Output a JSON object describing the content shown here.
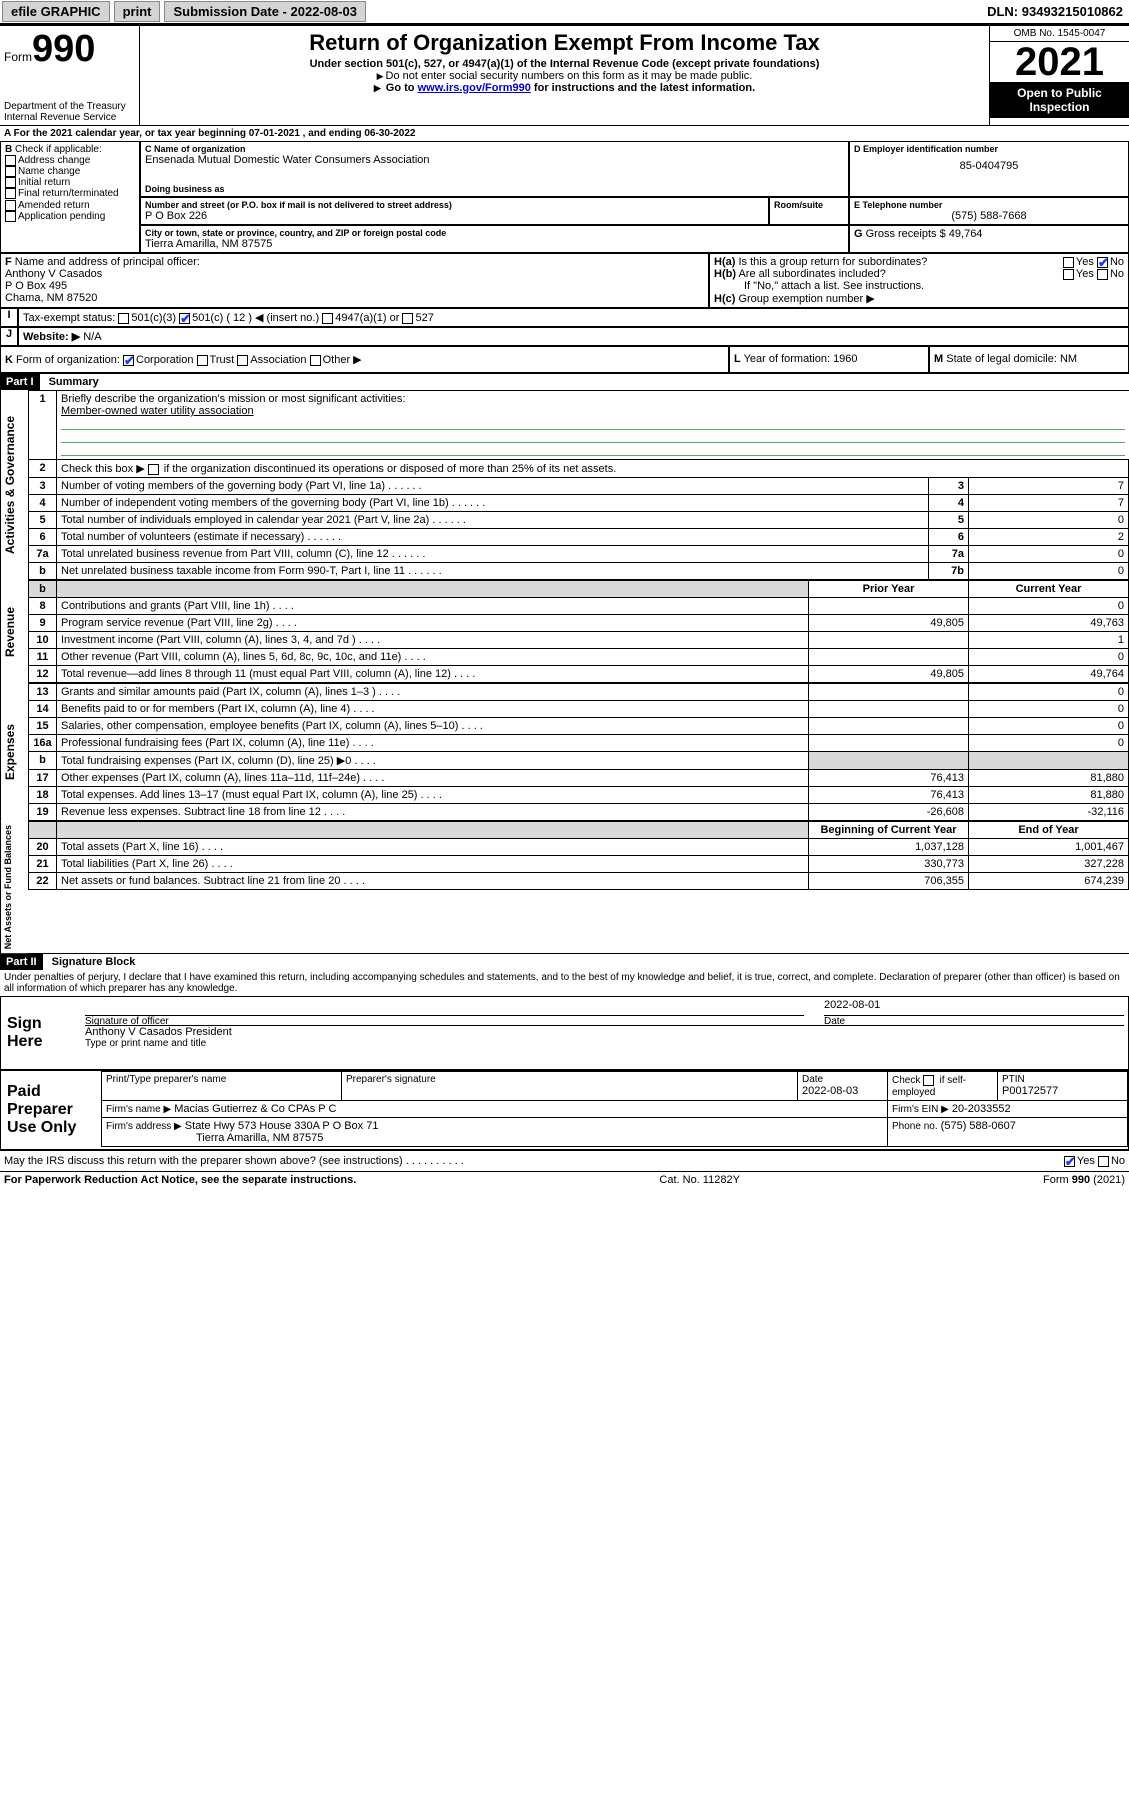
{
  "topbar": {
    "efile": "efile GRAPHIC",
    "print": "print",
    "sub_label": "Submission Date - ",
    "sub_date": "2022-08-03",
    "dln_label": "DLN: ",
    "dln": "93493215010862"
  },
  "header": {
    "form_word": "Form",
    "form_no": "990",
    "dept": "Department of the Treasury",
    "irs": "Internal Revenue Service",
    "title": "Return of Organization Exempt From Income Tax",
    "sub1": "Under section 501(c), 527, or 4947(a)(1) of the Internal Revenue Code (except private foundations)",
    "sub2": "Do not enter social security numbers on this form as it may be made public.",
    "sub3_pre": "Go to ",
    "sub3_link": "www.irs.gov/Form990",
    "sub3_post": " for instructions and the latest information.",
    "omb": "OMB No. 1545-0047",
    "year": "2021",
    "open": "Open to Public Inspection"
  },
  "periodA": {
    "text": "For the 2021 calendar year, or tax year beginning ",
    "begin": "07-01-2021",
    "mid": " , and ending ",
    "end": "06-30-2022"
  },
  "boxB": {
    "label": "Check if applicable:",
    "opts": [
      "Address change",
      "Name change",
      "Initial return",
      "Final return/terminated",
      "Amended return",
      "Application pending"
    ]
  },
  "boxC": {
    "label": "Name of organization",
    "name": "Ensenada Mutual Domestic Water Consumers Association",
    "dba_label": "Doing business as",
    "street_label": "Number and street (or P.O. box if mail is not delivered to street address)",
    "room_label": "Room/suite",
    "street": "P O Box 226",
    "city_label": "City or town, state or province, country, and ZIP or foreign postal code",
    "city": "Tierra Amarilla, NM  87575"
  },
  "boxD": {
    "label": "Employer identification number",
    "value": "85-0404795"
  },
  "boxE": {
    "label": "Telephone number",
    "value": "(575) 588-7668"
  },
  "boxG": {
    "label": "Gross receipts $",
    "value": "49,764"
  },
  "boxF": {
    "label": "Name and address of principal officer:",
    "name": "Anthony V Casados",
    "addr1": "P O Box 495",
    "addr2": "Chama, NM  87520"
  },
  "boxH": {
    "ha": "Is this a group return for subordinates?",
    "hb": "Are all subordinates included?",
    "hb_note": "If \"No,\" attach a list. See instructions.",
    "hc": "Group exemption number ▶",
    "yes": "Yes",
    "no": "No"
  },
  "boxI": {
    "label": "Tax-exempt status:",
    "opts": [
      "501(c)(3)",
      "501(c) ( 12 ) ◀ (insert no.)",
      "4947(a)(1) or",
      "527"
    ],
    "checked_index": 1
  },
  "boxJ": {
    "label": "Website: ▶",
    "value": "N/A"
  },
  "boxK": {
    "label": "Form of organization:",
    "opts": [
      "Corporation",
      "Trust",
      "Association",
      "Other ▶"
    ],
    "checked_index": 0
  },
  "boxL": {
    "label": "Year of formation:",
    "value": "1960"
  },
  "boxM": {
    "label": "State of legal domicile:",
    "value": "NM"
  },
  "part1": {
    "hdr": "Part I",
    "title": "Summary",
    "line1_label": "Briefly describe the organization's mission or most significant activities:",
    "line1_value": "Member-owned water utility association",
    "line2_label": "Check this box ▶",
    "line2_text": " if the organization discontinued its operations or disposed of more than 25% of its net assets.",
    "vlabels": {
      "gov": "Activities & Governance",
      "rev": "Revenue",
      "exp": "Expenses",
      "net": "Net Assets or Fund Balances"
    },
    "col_prior": "Prior Year",
    "col_current": "Current Year",
    "col_beg": "Beginning of Current Year",
    "col_end": "End of Year",
    "gov_rows": [
      {
        "n": "3",
        "t": "Number of voting members of the governing body (Part VI, line 1a)",
        "c": "3",
        "v": "7"
      },
      {
        "n": "4",
        "t": "Number of independent voting members of the governing body (Part VI, line 1b)",
        "c": "4",
        "v": "7"
      },
      {
        "n": "5",
        "t": "Total number of individuals employed in calendar year 2021 (Part V, line 2a)",
        "c": "5",
        "v": "0"
      },
      {
        "n": "6",
        "t": "Total number of volunteers (estimate if necessary)",
        "c": "6",
        "v": "2"
      },
      {
        "n": "7a",
        "t": "Total unrelated business revenue from Part VIII, column (C), line 12",
        "c": "7a",
        "v": "0"
      },
      {
        "n": "b",
        "t": "Net unrelated business taxable income from Form 990-T, Part I, line 11",
        "c": "7b",
        "v": "0"
      }
    ],
    "rev_rows": [
      {
        "n": "8",
        "t": "Contributions and grants (Part VIII, line 1h)",
        "p": "",
        "c": "0"
      },
      {
        "n": "9",
        "t": "Program service revenue (Part VIII, line 2g)",
        "p": "49,805",
        "c": "49,763"
      },
      {
        "n": "10",
        "t": "Investment income (Part VIII, column (A), lines 3, 4, and 7d )",
        "p": "",
        "c": "1"
      },
      {
        "n": "11",
        "t": "Other revenue (Part VIII, column (A), lines 5, 6d, 8c, 9c, 10c, and 11e)",
        "p": "",
        "c": "0"
      },
      {
        "n": "12",
        "t": "Total revenue—add lines 8 through 11 (must equal Part VIII, column (A), line 12)",
        "p": "49,805",
        "c": "49,764"
      }
    ],
    "exp_rows": [
      {
        "n": "13",
        "t": "Grants and similar amounts paid (Part IX, column (A), lines 1–3 )",
        "p": "",
        "c": "0"
      },
      {
        "n": "14",
        "t": "Benefits paid to or for members (Part IX, column (A), line 4)",
        "p": "",
        "c": "0"
      },
      {
        "n": "15",
        "t": "Salaries, other compensation, employee benefits (Part IX, column (A), lines 5–10)",
        "p": "",
        "c": "0"
      },
      {
        "n": "16a",
        "t": "Professional fundraising fees (Part IX, column (A), line 11e)",
        "p": "",
        "c": "0"
      },
      {
        "n": "b",
        "t": "Total fundraising expenses (Part IX, column (D), line 25) ▶0",
        "p": "SHADE",
        "c": "SHADE"
      },
      {
        "n": "17",
        "t": "Other expenses (Part IX, column (A), lines 11a–11d, 11f–24e)",
        "p": "76,413",
        "c": "81,880"
      },
      {
        "n": "18",
        "t": "Total expenses. Add lines 13–17 (must equal Part IX, column (A), line 25)",
        "p": "76,413",
        "c": "81,880"
      },
      {
        "n": "19",
        "t": "Revenue less expenses. Subtract line 18 from line 12",
        "p": "-26,608",
        "c": "-32,116"
      }
    ],
    "net_rows": [
      {
        "n": "20",
        "t": "Total assets (Part X, line 16)",
        "p": "1,037,128",
        "c": "1,001,467"
      },
      {
        "n": "21",
        "t": "Total liabilities (Part X, line 26)",
        "p": "330,773",
        "c": "327,228"
      },
      {
        "n": "22",
        "t": "Net assets or fund balances. Subtract line 21 from line 20",
        "p": "706,355",
        "c": "674,239"
      }
    ]
  },
  "part2": {
    "hdr": "Part II",
    "title": "Signature Block",
    "penalty": "Under penalties of perjury, I declare that I have examined this return, including accompanying schedules and statements, and to the best of my knowledge and belief, it is true, correct, and complete. Declaration of preparer (other than officer) is based on all information of which preparer has any knowledge.",
    "sign_here": "Sign Here",
    "sig_officer": "Signature of officer",
    "sig_date_label": "Date",
    "sig_date": "2022-08-01",
    "officer_name": "Anthony V Casados  President",
    "type_name": "Type or print name and title",
    "paid": "Paid Preparer Use Only",
    "col_print": "Print/Type preparer's name",
    "col_sig": "Preparer's signature",
    "col_date": "Date",
    "prep_date": "2022-08-03",
    "check_self": "Check",
    "self_emp": "if self-employed",
    "ptin_label": "PTIN",
    "ptin": "P00172577",
    "firm_name_label": "Firm's name    ▶",
    "firm_name": "Macias Gutierrez & Co CPAs P C",
    "firm_ein_label": "Firm's EIN ▶",
    "firm_ein": "20-2033552",
    "firm_addr_label": "Firm's address ▶",
    "firm_addr1": "State Hwy 573 House 330A P O Box 71",
    "firm_addr2": "Tierra Amarilla, NM  87575",
    "phone_label": "Phone no.",
    "phone": "(575) 588-0607",
    "discuss": "May the IRS discuss this return with the preparer shown above? (see instructions)",
    "yes": "Yes",
    "no": "No"
  },
  "footer": {
    "left": "For Paperwork Reduction Act Notice, see the separate instructions.",
    "mid": "Cat. No. 11282Y",
    "right": "Form 990 (2021)"
  }
}
